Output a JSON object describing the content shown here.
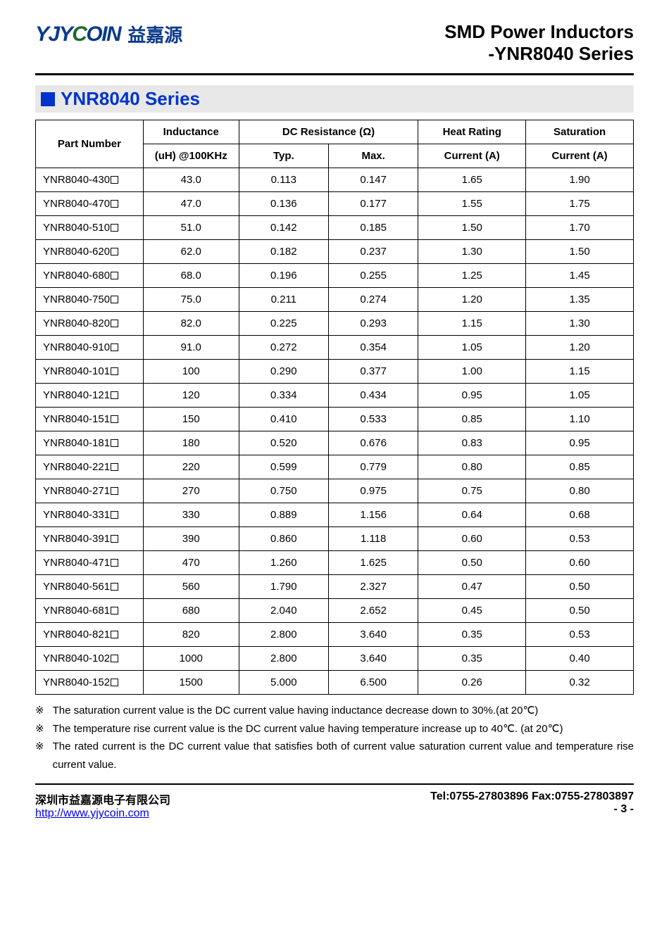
{
  "header": {
    "logo_text": "YJYCOIN",
    "logo_cn": "益嘉源",
    "title_line1": "SMD Power Inductors",
    "title_line2": "-YNR8040 Series"
  },
  "series": {
    "title": "YNR8040 Series"
  },
  "table": {
    "columns": {
      "part_number_l1": "Part Number",
      "inductance_l1": "Inductance",
      "inductance_l2": "(uH) @100KHz",
      "dcr_l1": "DC Resistance (Ω)",
      "dcr_typ": "Typ.",
      "dcr_max": "Max.",
      "heat_l1": "Heat Rating",
      "heat_l2": "Current (A)",
      "sat_l1": "Saturation",
      "sat_l2": "Current (A)"
    },
    "rows": [
      {
        "pn": "YNR8040-430",
        "ind": "43.0",
        "typ": "0.113",
        "max": "0.147",
        "hr": "1.65",
        "sat": "1.90"
      },
      {
        "pn": "YNR8040-470",
        "ind": "47.0",
        "typ": "0.136",
        "max": "0.177",
        "hr": "1.55",
        "sat": "1.75"
      },
      {
        "pn": "YNR8040-510",
        "ind": "51.0",
        "typ": "0.142",
        "max": "0.185",
        "hr": "1.50",
        "sat": "1.70"
      },
      {
        "pn": "YNR8040-620",
        "ind": "62.0",
        "typ": "0.182",
        "max": "0.237",
        "hr": "1.30",
        "sat": "1.50"
      },
      {
        "pn": "YNR8040-680",
        "ind": "68.0",
        "typ": "0.196",
        "max": "0.255",
        "hr": "1.25",
        "sat": "1.45"
      },
      {
        "pn": "YNR8040-750",
        "ind": "75.0",
        "typ": "0.211",
        "max": "0.274",
        "hr": "1.20",
        "sat": "1.35"
      },
      {
        "pn": "YNR8040-820",
        "ind": "82.0",
        "typ": "0.225",
        "max": "0.293",
        "hr": "1.15",
        "sat": "1.30"
      },
      {
        "pn": "YNR8040-910",
        "ind": "91.0",
        "typ": "0.272",
        "max": "0.354",
        "hr": "1.05",
        "sat": "1.20"
      },
      {
        "pn": "YNR8040-101",
        "ind": "100",
        "typ": "0.290",
        "max": "0.377",
        "hr": "1.00",
        "sat": "1.15"
      },
      {
        "pn": "YNR8040-121",
        "ind": "120",
        "typ": "0.334",
        "max": "0.434",
        "hr": "0.95",
        "sat": "1.05"
      },
      {
        "pn": "YNR8040-151",
        "ind": "150",
        "typ": "0.410",
        "max": "0.533",
        "hr": "0.85",
        "sat": "1.10"
      },
      {
        "pn": "YNR8040-181",
        "ind": "180",
        "typ": "0.520",
        "max": "0.676",
        "hr": "0.83",
        "sat": "0.95"
      },
      {
        "pn": "YNR8040-221",
        "ind": "220",
        "typ": "0.599",
        "max": "0.779",
        "hr": "0.80",
        "sat": "0.85"
      },
      {
        "pn": "YNR8040-271",
        "ind": "270",
        "typ": "0.750",
        "max": "0.975",
        "hr": "0.75",
        "sat": "0.80"
      },
      {
        "pn": "YNR8040-331",
        "ind": "330",
        "typ": "0.889",
        "max": "1.156",
        "hr": "0.64",
        "sat": "0.68"
      },
      {
        "pn": "YNR8040-391",
        "ind": "390",
        "typ": "0.860",
        "max": "1.118",
        "hr": "0.60",
        "sat": "0.53"
      },
      {
        "pn": "YNR8040-471",
        "ind": "470",
        "typ": "1.260",
        "max": "1.625",
        "hr": "0.50",
        "sat": "0.60"
      },
      {
        "pn": "YNR8040-561",
        "ind": "560",
        "typ": "1.790",
        "max": "2.327",
        "hr": "0.47",
        "sat": "0.50"
      },
      {
        "pn": "YNR8040-681",
        "ind": "680",
        "typ": "2.040",
        "max": "2.652",
        "hr": "0.45",
        "sat": "0.50"
      },
      {
        "pn": "YNR8040-821",
        "ind": "820",
        "typ": "2.800",
        "max": "3.640",
        "hr": "0.35",
        "sat": "0.53"
      },
      {
        "pn": "YNR8040-102",
        "ind": "1000",
        "typ": "2.800",
        "max": "3.640",
        "hr": "0.35",
        "sat": "0.40"
      },
      {
        "pn": "YNR8040-152",
        "ind": "1500",
        "typ": "5.000",
        "max": "6.500",
        "hr": "0.26",
        "sat": "0.32"
      }
    ]
  },
  "notes": {
    "mark": "※",
    "items": [
      "The saturation current value is the DC current value having inductance decrease down to 30%.(at 20℃)",
      "The temperature rise current value is the DC current value having temperature increase up to 40℃. (at 20℃)",
      "The rated current is the DC current value that satisfies both of current value saturation current value and temperature rise current value."
    ]
  },
  "footer": {
    "company": "深圳市益嘉源电子有限公司",
    "url": "http://www.yjycoin.com",
    "tel_fax": "Tel:0755-27803896   Fax:0755-27803897",
    "page": "- 3 -"
  }
}
